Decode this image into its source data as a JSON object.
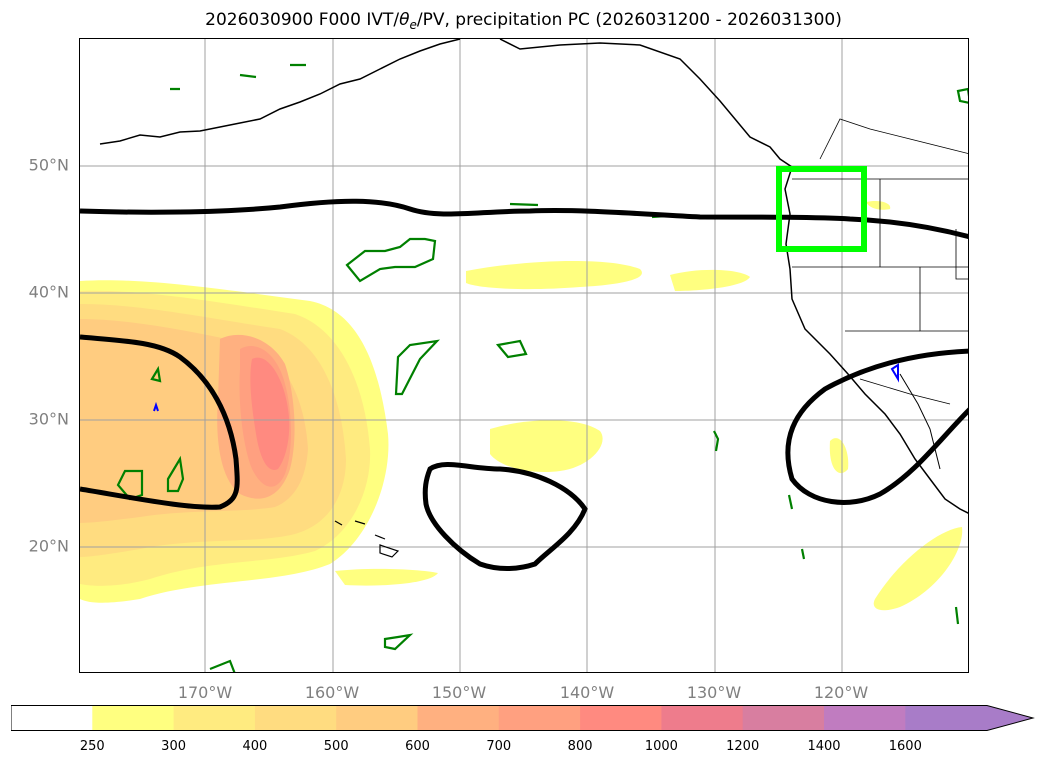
{
  "title": {
    "main_before": "2026030900 F000 IVT/",
    "theta": "θ",
    "subscript": "e",
    "main_after": "/PV, precipitation PC (2026031200 - 2026031300)"
  },
  "axes": {
    "lat_labels": [
      "50°N",
      "40°N",
      "30°N",
      "20°N"
    ],
    "lon_labels": [
      "170°W",
      "160°W",
      "150°W",
      "140°W",
      "130°W",
      "120°W"
    ]
  },
  "colorbar": {
    "ticks": [
      "250",
      "300",
      "400",
      "500",
      "600",
      "700",
      "800",
      "1000",
      "1200",
      "1400",
      "1600"
    ],
    "colors": [
      "#ffffff",
      "#ffff80",
      "#ffeb80",
      "#ffdc80",
      "#ffcc80",
      "#ffb080",
      "#ffa080",
      "#ff8a80",
      "#ee7c8c",
      "#d87ea0",
      "#c07cc0",
      "#a87cc8"
    ],
    "extend": "max"
  },
  "map_colors": {
    "coast": "#000000",
    "pv_contour": "#000000",
    "theta_e_contour": "#008000",
    "small_contour": "#0000ff",
    "box": "#00ff00",
    "grid": "#a0a0a0"
  }
}
